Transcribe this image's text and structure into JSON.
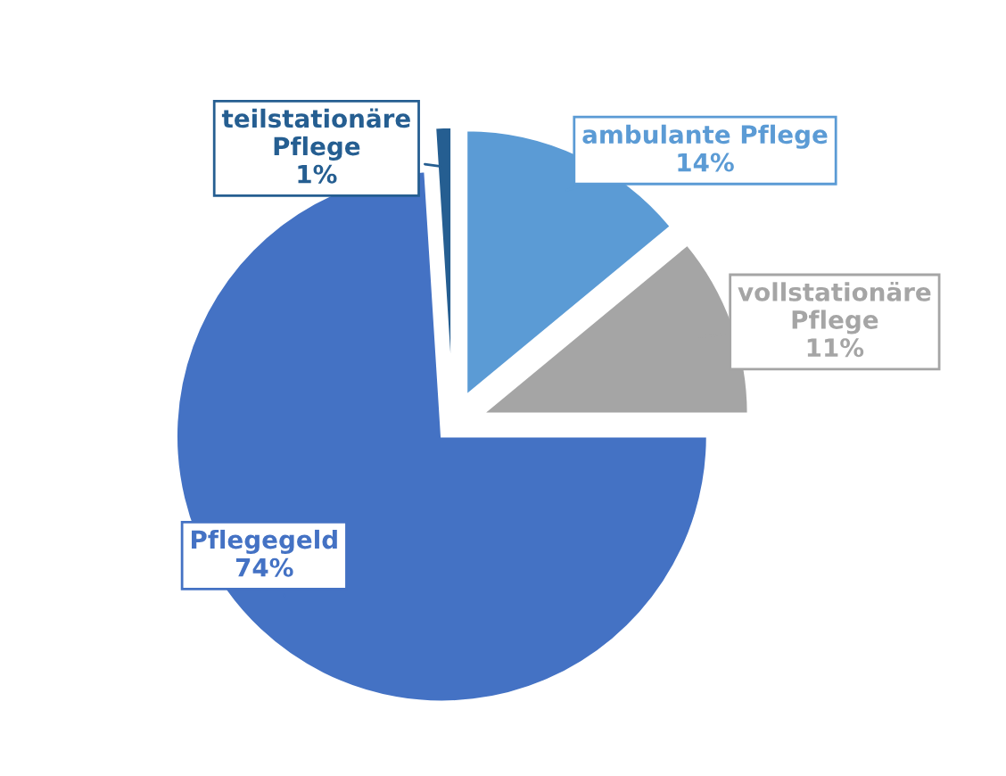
{
  "chart_data": {
    "type": "pie",
    "categories": [
      "ambulante Pflege",
      "vollstationäre Pflege",
      "Pflegegeld",
      "teilstationäre Pflege"
    ],
    "values": [
      14,
      11,
      74,
      1
    ],
    "colors": [
      "#5b9bd5",
      "#a5a5a5",
      "#4472c4",
      "#255e91"
    ],
    "value_labels": [
      "14%",
      "11%",
      "74%",
      "1%"
    ],
    "legend": false
  }
}
